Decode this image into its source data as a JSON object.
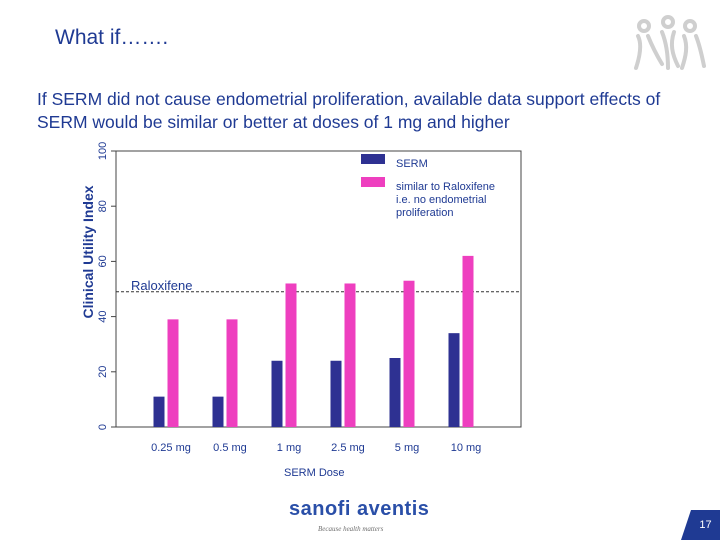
{
  "slide": {
    "title": "What if…….",
    "subtitle": "If SERM did not cause endometrial proliferation, available data support effects of SERM would be similar or better at doses of 1 mg and higher",
    "brand": "sanofi aventis",
    "brand_tagline": "Because health matters",
    "page_number": "17"
  },
  "chart_data": {
    "type": "bar",
    "title": "",
    "xlabel": "SERM Dose",
    "ylabel": "Clinical Utility Index",
    "categories": [
      "0.25 mg",
      "0.5 mg",
      "1 mg",
      "2.5 mg",
      "5 mg",
      "10 mg"
    ],
    "ylim": [
      0,
      100
    ],
    "yticks": [
      0,
      20,
      40,
      60,
      80,
      100
    ],
    "grid": false,
    "legend_position": "top-right",
    "series": [
      {
        "name": "SERM",
        "color": "#2e3192",
        "values": [
          11,
          11,
          24,
          24,
          25,
          34
        ]
      },
      {
        "name": "similar to Raloxifene i.e. no endometrial proliferation",
        "color": "#ee3fbf",
        "values": [
          39,
          39,
          52,
          52,
          53,
          62
        ]
      }
    ],
    "reference_line": {
      "label": "Raloxifene",
      "value": 49,
      "style": "dashed"
    }
  }
}
